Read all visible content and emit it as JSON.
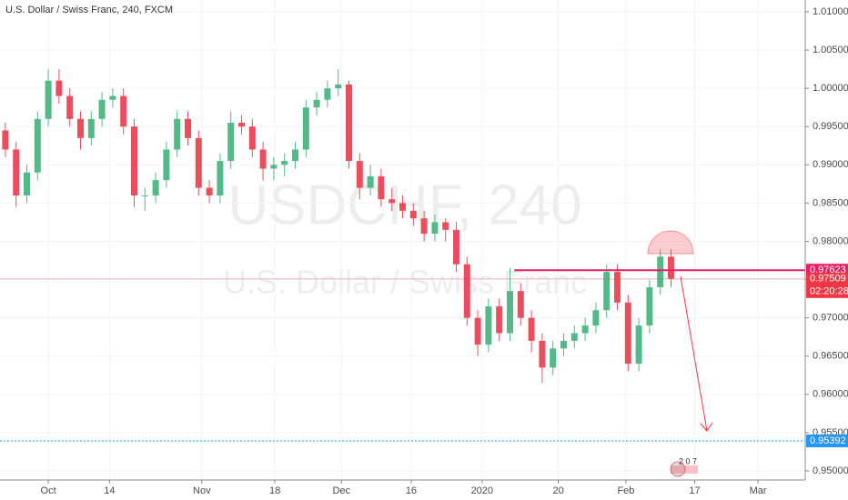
{
  "chart_data": {
    "type": "candlestick",
    "title": "U.S. Dollar / Swiss Franc, 240, FXCM",
    "watermark": "USDCHF, 240",
    "watermark_subtitle": "U.S. Dollar / Swiss Franc",
    "up_color": "#53b987",
    "down_color": "#eb4d5c",
    "xlim": [
      0,
      75
    ],
    "xticks": [
      {
        "value": 4.5,
        "label": "Oct"
      },
      {
        "value": 10.2,
        "label": "14"
      },
      {
        "value": 18.8,
        "label": "Nov"
      },
      {
        "value": 25.6,
        "label": "18"
      },
      {
        "value": 31.8,
        "label": "Dec"
      },
      {
        "value": 38.3,
        "label": "16"
      },
      {
        "value": 44.9,
        "label": "2020"
      },
      {
        "value": 52.0,
        "label": "20"
      },
      {
        "value": 58.3,
        "label": "Feb"
      },
      {
        "value": 64.7,
        "label": "17"
      },
      {
        "value": 70.6,
        "label": "Mar"
      }
    ],
    "ylim": [
      0.94881,
      1.01154
    ],
    "yticks": [
      {
        "value": 0.95,
        "label": "0.95000"
      },
      {
        "value": 0.955,
        "label": "0.95500"
      },
      {
        "value": 0.96,
        "label": "0.96000"
      },
      {
        "value": 0.965,
        "label": "0.96500"
      },
      {
        "value": 0.97,
        "label": "0.97000"
      },
      {
        "value": 0.975,
        "label": "0.97500"
      },
      {
        "value": 0.98,
        "label": "0.98000"
      },
      {
        "value": 0.985,
        "label": "0.98500"
      },
      {
        "value": 0.99,
        "label": "0.99000"
      },
      {
        "value": 0.995,
        "label": "0.99500"
      },
      {
        "value": 1.0,
        "label": "1.00000"
      },
      {
        "value": 1.005,
        "label": "1.00500"
      },
      {
        "value": 1.01,
        "label": "1.01000"
      }
    ],
    "open": [
      0.9945,
      0.992,
      0.986,
      0.989,
      0.996,
      1.001,
      0.999,
      0.996,
      0.9935,
      0.996,
      0.9985,
      0.999,
      0.995,
      0.986,
      0.986,
      0.988,
      0.992,
      0.996,
      0.9935,
      0.987,
      0.986,
      0.9905,
      0.9955,
      0.995,
      0.992,
      0.9895,
      0.99,
      0.9905,
      0.992,
      0.9975,
      0.9985,
      1.0,
      1.0005,
      0.9905,
      0.987,
      0.9885,
      0.9855,
      0.985,
      0.984,
      0.983,
      0.981,
      0.9825,
      0.9815,
      0.977,
      0.97,
      0.9665,
      0.9715,
      0.968,
      0.9735,
      0.97,
      0.967,
      0.9635,
      0.966,
      0.967,
      0.968,
      0.969,
      0.971,
      0.976,
      0.972,
      0.964,
      0.969,
      0.974,
      0.978
    ],
    "high": [
      0.9955,
      0.993,
      0.99,
      0.997,
      1.0025,
      1.0025,
      1.0,
      0.997,
      0.997,
      0.9995,
      1.0,
      1.0,
      0.996,
      0.987,
      0.989,
      0.993,
      0.997,
      0.997,
      0.9945,
      0.988,
      0.9915,
      0.997,
      0.9965,
      0.996,
      0.993,
      0.991,
      0.9915,
      0.993,
      0.9985,
      0.9995,
      1.001,
      1.0025,
      1.001,
      0.9915,
      0.99,
      0.9895,
      0.987,
      0.986,
      0.985,
      0.984,
      0.9835,
      0.983,
      0.9825,
      0.978,
      0.971,
      0.9725,
      0.9725,
      0.9765,
      0.9745,
      0.971,
      0.968,
      0.967,
      0.968,
      0.969,
      0.97,
      0.972,
      0.977,
      0.977,
      0.973,
      0.97,
      0.975,
      0.979,
      0.979
    ],
    "low": [
      0.991,
      0.9845,
      0.985,
      0.988,
      0.995,
      0.998,
      0.995,
      0.992,
      0.9925,
      0.995,
      0.9975,
      0.994,
      0.9845,
      0.984,
      0.985,
      0.987,
      0.991,
      0.9925,
      0.986,
      0.985,
      0.985,
      0.9895,
      0.994,
      0.991,
      0.988,
      0.988,
      0.9885,
      0.9895,
      0.991,
      0.9965,
      0.9975,
      0.999,
      0.9895,
      0.9855,
      0.986,
      0.9845,
      0.984,
      0.983,
      0.982,
      0.98,
      0.98,
      0.98,
      0.976,
      0.969,
      0.965,
      0.9655,
      0.967,
      0.967,
      0.969,
      0.9655,
      0.9615,
      0.9625,
      0.965,
      0.966,
      0.967,
      0.968,
      0.97,
      0.971,
      0.963,
      0.963,
      0.968,
      0.973,
      0.974
    ],
    "close": [
      0.992,
      0.986,
      0.989,
      0.996,
      1.001,
      0.999,
      0.996,
      0.9935,
      0.996,
      0.9985,
      0.999,
      0.995,
      0.986,
      0.986,
      0.988,
      0.992,
      0.996,
      0.9935,
      0.987,
      0.986,
      0.9905,
      0.9955,
      0.995,
      0.992,
      0.9895,
      0.99,
      0.9905,
      0.992,
      0.9975,
      0.9985,
      1.0,
      1.0005,
      0.9905,
      0.987,
      0.9885,
      0.9855,
      0.985,
      0.984,
      0.983,
      0.981,
      0.9825,
      0.9815,
      0.977,
      0.97,
      0.9665,
      0.9715,
      0.968,
      0.9735,
      0.97,
      0.967,
      0.9635,
      0.966,
      0.967,
      0.968,
      0.969,
      0.971,
      0.976,
      0.972,
      0.964,
      0.969,
      0.974,
      0.978,
      0.9751
    ],
    "hlines": [
      {
        "value": 0.97623,
        "color": "#e91e63",
        "style": "solid",
        "start": 47.9
      },
      {
        "value": 0.95392,
        "color": "#2196f3",
        "style": "dotted",
        "start": 0
      }
    ],
    "last_price": {
      "value": 0.97509,
      "color": "#f23645",
      "countdown": "02:20:28"
    },
    "event_badge": "2 0 7"
  }
}
